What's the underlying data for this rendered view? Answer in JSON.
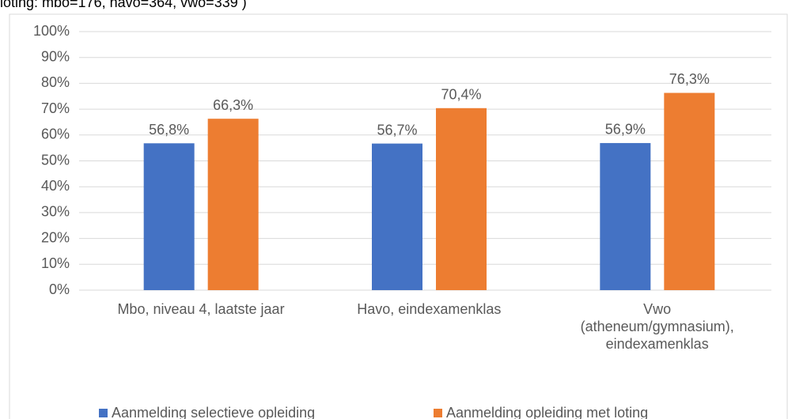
{
  "chart_data": {
    "type": "bar",
    "title": "loting: mbo=176, havo=364, vwo=339 )",
    "categories": [
      "Mbo, niveau 4, laatste jaar",
      "Havo, eindexamenklas",
      "Vwo\n(atheneum/gymnasium),\neindexamenklas"
    ],
    "series": [
      {
        "name": "Aanmelding selectieve opleiding",
        "color": "#4472c4",
        "values": [
          56.8,
          56.7,
          56.9
        ],
        "value_labels": [
          "56,8%",
          "56,7%",
          "56,9%"
        ]
      },
      {
        "name": "Aanmelding opleiding met loting",
        "color": "#ed7d31",
        "values": [
          66.3,
          70.4,
          76.3
        ],
        "value_labels": [
          "66,3%",
          "70,4%",
          "76,3%"
        ]
      }
    ],
    "ylim": [
      0,
      100
    ],
    "yticks": [
      {
        "value": 0,
        "label": "0%"
      },
      {
        "value": 10,
        "label": "10%"
      },
      {
        "value": 20,
        "label": "20%"
      },
      {
        "value": 30,
        "label": "30%"
      },
      {
        "value": 40,
        "label": "40%"
      },
      {
        "value": 50,
        "label": "50%"
      },
      {
        "value": 60,
        "label": "60%"
      },
      {
        "value": 70,
        "label": "70%"
      },
      {
        "value": 80,
        "label": "80%"
      },
      {
        "value": 90,
        "label": "90%"
      },
      {
        "value": 100,
        "label": "100%"
      }
    ],
    "grid": true,
    "legend": "bottom"
  }
}
